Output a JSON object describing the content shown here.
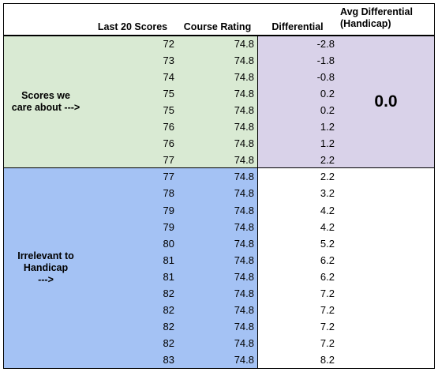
{
  "table": {
    "headers": [
      "Last 20 Scores",
      "Course Rating",
      "Differential",
      "Avg Differential (Handicap)"
    ],
    "groups": [
      {
        "label_lines": [
          "Scores we",
          "care about --->"
        ],
        "avg": "0.0",
        "rows": [
          [
            72,
            74.8,
            -2.8
          ],
          [
            73,
            74.8,
            -1.8
          ],
          [
            74,
            74.8,
            -0.8
          ],
          [
            75,
            74.8,
            0.2
          ],
          [
            75,
            74.8,
            0.2
          ],
          [
            76,
            74.8,
            1.2
          ],
          [
            76,
            74.8,
            1.2
          ],
          [
            77,
            74.8,
            2.2
          ]
        ]
      },
      {
        "label_lines": [
          "Irrelevant to",
          "Handicap",
          "--->"
        ],
        "rows": [
          [
            77,
            74.8,
            2.2
          ],
          [
            78,
            74.8,
            3.2
          ],
          [
            79,
            74.8,
            4.2
          ],
          [
            79,
            74.8,
            4.2
          ],
          [
            80,
            74.8,
            5.2
          ],
          [
            81,
            74.8,
            6.2
          ],
          [
            81,
            74.8,
            6.2
          ],
          [
            82,
            74.8,
            7.2
          ],
          [
            82,
            74.8,
            7.2
          ],
          [
            82,
            74.8,
            7.2
          ],
          [
            82,
            74.8,
            7.2
          ],
          [
            83,
            74.8,
            8.2
          ]
        ]
      }
    ]
  }
}
